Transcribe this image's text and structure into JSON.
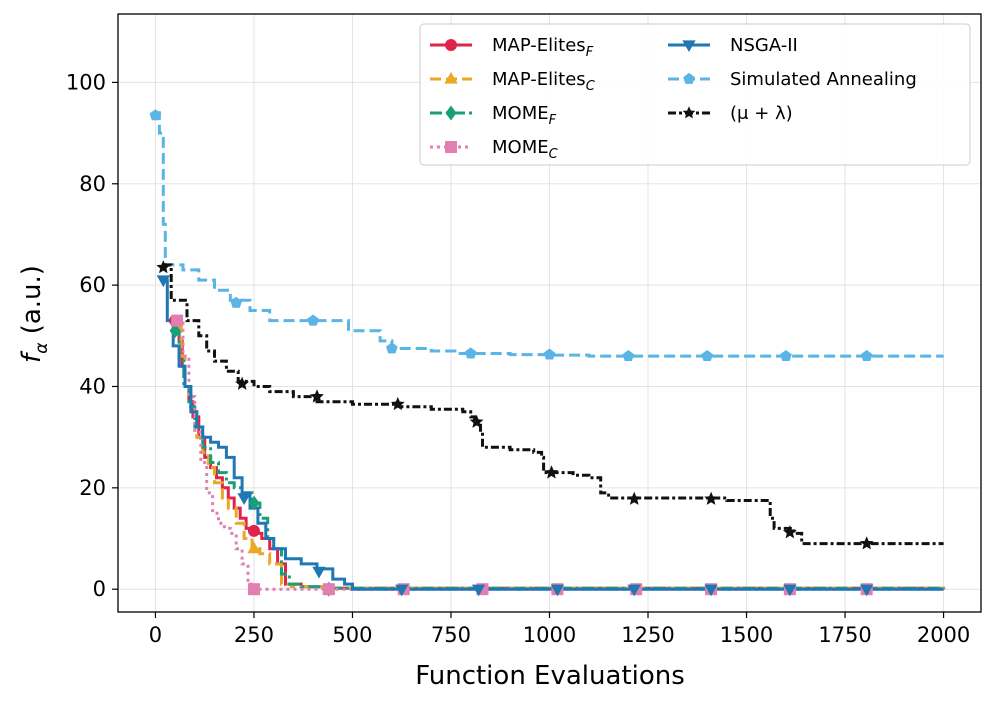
{
  "chart_data": {
    "type": "line",
    "style": "step",
    "xlabel": "Function Evaluations",
    "ylabel": "f_α (a.u.)",
    "ylabel_main": "f",
    "ylabel_sub": "α",
    "ylabel_unit": " (a.u.)",
    "xlim": [
      -95,
      2095
    ],
    "ylim": [
      -4.5,
      113.5
    ],
    "xticks": [
      0,
      250,
      500,
      750,
      1000,
      1250,
      1500,
      1750,
      2000
    ],
    "yticks": [
      0,
      20,
      40,
      60,
      80,
      100
    ],
    "grid": true,
    "legend_position": "top-right",
    "series": [
      {
        "name": "MAP-Elites_F",
        "label_main": "MAP-Elites",
        "label_sub": "F",
        "color": "#e0234a",
        "dash": "solid",
        "marker": "circle",
        "points": [
          [
            50,
            53
          ],
          [
            60,
            49
          ],
          [
            68,
            44
          ],
          [
            75,
            40
          ],
          [
            85,
            37
          ],
          [
            95,
            34
          ],
          [
            110,
            30
          ],
          [
            125,
            26
          ],
          [
            140,
            24
          ],
          [
            155,
            22
          ],
          [
            170,
            20
          ],
          [
            185,
            18
          ],
          [
            200,
            16
          ],
          [
            215,
            14
          ],
          [
            230,
            12
          ],
          [
            250,
            11
          ],
          [
            270,
            10
          ],
          [
            290,
            8
          ],
          [
            310,
            5
          ],
          [
            330,
            1
          ],
          [
            370,
            0.5
          ],
          [
            440,
            0.2
          ],
          [
            2000,
            0
          ]
        ],
        "marker_points": [
          [
            50,
            53
          ],
          [
            250,
            11.5
          ],
          [
            440,
            0
          ]
        ]
      },
      {
        "name": "MAP-Elites_C",
        "label_main": "MAP-Elites",
        "label_sub": "C",
        "color": "#e9a825",
        "dash": "dash",
        "marker": "triangle",
        "points": [
          [
            55,
            52
          ],
          [
            65,
            46
          ],
          [
            75,
            40
          ],
          [
            90,
            35
          ],
          [
            105,
            30
          ],
          [
            120,
            27
          ],
          [
            135,
            24
          ],
          [
            150,
            21
          ],
          [
            170,
            18
          ],
          [
            185,
            16
          ],
          [
            205,
            13
          ],
          [
            225,
            10
          ],
          [
            245,
            8
          ],
          [
            265,
            7
          ],
          [
            290,
            5
          ],
          [
            320,
            1
          ],
          [
            345,
            0.5
          ],
          [
            440,
            0.2
          ],
          [
            2000,
            0
          ]
        ],
        "marker_points": [
          [
            55,
            52
          ],
          [
            250,
            8
          ],
          [
            440,
            0
          ]
        ]
      },
      {
        "name": "MOME_F",
        "label_main": "MOME",
        "label_sub": "F",
        "color": "#1a9e77",
        "dash": "dashdot",
        "marker": "diamond",
        "points": [
          [
            45,
            51
          ],
          [
            60,
            45
          ],
          [
            72,
            40
          ],
          [
            85,
            36
          ],
          [
            100,
            32
          ],
          [
            120,
            28
          ],
          [
            140,
            25
          ],
          [
            160,
            23
          ],
          [
            180,
            21
          ],
          [
            200,
            20
          ],
          [
            220,
            19
          ],
          [
            245,
            17
          ],
          [
            265,
            14
          ],
          [
            285,
            10
          ],
          [
            300,
            8
          ],
          [
            320,
            3
          ],
          [
            340,
            1
          ],
          [
            370,
            0.5
          ],
          [
            440,
            0.2
          ],
          [
            2000,
            0
          ]
        ],
        "marker_points": [
          [
            50,
            51
          ],
          [
            250,
            17
          ],
          [
            440,
            0
          ]
        ]
      },
      {
        "name": "MOME_C",
        "label_main": "MOME",
        "label_sub": "C",
        "color": "#e17fb0",
        "dash": "dot",
        "marker": "square",
        "points": [
          [
            55,
            53
          ],
          [
            70,
            46
          ],
          [
            85,
            38
          ],
          [
            100,
            31
          ],
          [
            115,
            25
          ],
          [
            130,
            19
          ],
          [
            145,
            15
          ],
          [
            160,
            13
          ],
          [
            175,
            12
          ],
          [
            190,
            11
          ],
          [
            205,
            8
          ],
          [
            220,
            5
          ],
          [
            235,
            1
          ],
          [
            250,
            0
          ],
          [
            2000,
            0
          ]
        ],
        "marker_points": [
          [
            55,
            53
          ],
          [
            250,
            0
          ],
          [
            440,
            0
          ],
          [
            630,
            0
          ],
          [
            830,
            0
          ],
          [
            1020,
            0
          ],
          [
            1220,
            0
          ],
          [
            1410,
            0
          ],
          [
            1610,
            0
          ],
          [
            1805,
            0
          ]
        ]
      },
      {
        "name": "NSGA-II",
        "label_main": "NSGA-II",
        "label_sub": "",
        "color": "#1f77b4",
        "dash": "solid",
        "marker": "triangle-down",
        "points": [
          [
            20,
            61
          ],
          [
            30,
            53
          ],
          [
            45,
            48
          ],
          [
            60,
            44
          ],
          [
            75,
            40
          ],
          [
            90,
            35
          ],
          [
            105,
            32
          ],
          [
            120,
            30
          ],
          [
            140,
            29
          ],
          [
            160,
            28
          ],
          [
            180,
            26
          ],
          [
            200,
            22
          ],
          [
            220,
            19
          ],
          [
            240,
            16
          ],
          [
            260,
            13
          ],
          [
            280,
            10
          ],
          [
            300,
            8
          ],
          [
            330,
            6
          ],
          [
            370,
            5
          ],
          [
            410,
            4
          ],
          [
            450,
            2
          ],
          [
            480,
            1
          ],
          [
            500,
            0
          ],
          [
            2000,
            0
          ]
        ],
        "marker_points": [
          [
            20,
            61
          ],
          [
            225,
            18
          ],
          [
            415,
            3.5
          ],
          [
            625,
            0
          ],
          [
            820,
            0
          ],
          [
            1020,
            0
          ],
          [
            1215,
            0
          ],
          [
            1410,
            0
          ],
          [
            1610,
            0
          ],
          [
            1805,
            0
          ]
        ]
      },
      {
        "name": "Simulated Annealing",
        "label_main": "Simulated Annealing",
        "label_sub": "",
        "color": "#5ab4e5",
        "dash": "dash",
        "marker": "pentagon",
        "points": [
          [
            0,
            94
          ],
          [
            10,
            90
          ],
          [
            20,
            72
          ],
          [
            25,
            64
          ],
          [
            70,
            63
          ],
          [
            110,
            61
          ],
          [
            150,
            59
          ],
          [
            190,
            57
          ],
          [
            240,
            55
          ],
          [
            290,
            53
          ],
          [
            350,
            53
          ],
          [
            480,
            53
          ],
          [
            490,
            51
          ],
          [
            570,
            49
          ],
          [
            600,
            47.5
          ],
          [
            700,
            47
          ],
          [
            760,
            46.5
          ],
          [
            820,
            46.5
          ],
          [
            900,
            46.3
          ],
          [
            1000,
            46.2
          ],
          [
            1100,
            46
          ],
          [
            1300,
            46
          ],
          [
            1500,
            46
          ],
          [
            1700,
            46
          ],
          [
            2000,
            46
          ]
        ],
        "marker_points": [
          [
            0,
            93.5
          ],
          [
            205,
            56.5
          ],
          [
            400,
            53
          ],
          [
            600,
            47.5
          ],
          [
            800,
            46.5
          ],
          [
            1000,
            46.3
          ],
          [
            1200,
            46
          ],
          [
            1400,
            46
          ],
          [
            1600,
            46
          ],
          [
            1805,
            46
          ]
        ]
      },
      {
        "name": "(μ + λ)",
        "label_main": "(μ + λ)",
        "label_sub": "",
        "color": "#111111",
        "dash": "densedashdot",
        "marker": "star",
        "points": [
          [
            20,
            64
          ],
          [
            40,
            57
          ],
          [
            80,
            53
          ],
          [
            110,
            50
          ],
          [
            130,
            47
          ],
          [
            150,
            45
          ],
          [
            180,
            43
          ],
          [
            210,
            41
          ],
          [
            250,
            40
          ],
          [
            290,
            39
          ],
          [
            350,
            38
          ],
          [
            410,
            37
          ],
          [
            500,
            36.5
          ],
          [
            620,
            36
          ],
          [
            700,
            35.5
          ],
          [
            780,
            35
          ],
          [
            800,
            34
          ],
          [
            810,
            33
          ],
          [
            825,
            31
          ],
          [
            830,
            28
          ],
          [
            900,
            27.5
          ],
          [
            960,
            27
          ],
          [
            980,
            26
          ],
          [
            985,
            23
          ],
          [
            1060,
            22.5
          ],
          [
            1100,
            22
          ],
          [
            1130,
            19
          ],
          [
            1150,
            18
          ],
          [
            1450,
            17.5
          ],
          [
            1550,
            17.5
          ],
          [
            1560,
            14
          ],
          [
            1570,
            12
          ],
          [
            1620,
            11
          ],
          [
            1640,
            9
          ],
          [
            1850,
            9
          ],
          [
            2000,
            9
          ]
        ],
        "marker_points": [
          [
            20,
            63.5
          ],
          [
            220,
            40.5
          ],
          [
            410,
            38
          ],
          [
            615,
            36.5
          ],
          [
            815,
            33
          ],
          [
            1005,
            23
          ],
          [
            1215,
            17.8
          ],
          [
            1410,
            17.8
          ],
          [
            1610,
            11.2
          ],
          [
            1805,
            9
          ]
        ]
      }
    ]
  }
}
